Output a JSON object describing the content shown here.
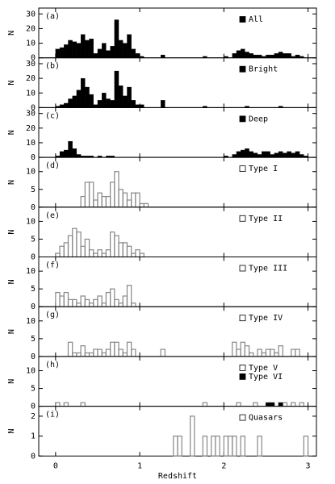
{
  "chart_data": {
    "type": "histogram",
    "xlabel": "Redshift",
    "xlim": [
      -0.2,
      3.1
    ],
    "xticks": [
      0,
      1,
      2,
      3
    ],
    "bins": [
      0,
      0.05,
      0.1,
      0.15,
      0.2,
      0.25,
      0.3,
      0.35,
      0.4,
      0.45,
      0.5,
      0.55,
      0.6,
      0.65,
      0.7,
      0.75,
      0.8,
      0.85,
      0.9,
      0.95,
      1,
      1.05,
      1.1,
      1.15,
      1.2,
      1.25,
      1.3,
      1.35,
      1.4,
      1.45,
      1.5,
      1.55,
      1.6,
      1.65,
      1.7,
      1.75,
      1.8,
      1.85,
      1.9,
      1.95,
      2,
      2.05,
      2.1,
      2.15,
      2.2,
      2.25,
      2.3,
      2.35,
      2.4,
      2.45,
      2.5,
      2.55,
      2.6,
      2.65,
      2.7,
      2.75,
      2.8,
      2.85,
      2.9,
      2.95,
      3
    ],
    "panels": [
      {
        "label": "(a)",
        "ylabel": "N",
        "ylim": [
          0,
          34
        ],
        "yticks": [
          0,
          10,
          20,
          30
        ],
        "series": [
          {
            "name": "All",
            "filled": true,
            "color": "#000000",
            "values": [
              6,
              7,
              9,
              12,
              11,
              10,
              16,
              12,
              13,
              3,
              6,
              10,
              5,
              8,
              26,
              12,
              10,
              16,
              6,
              3,
              1,
              0,
              0,
              0,
              0,
              2,
              0,
              0,
              0,
              0,
              0,
              0,
              0,
              0,
              0,
              1,
              0,
              0,
              0,
              0,
              1,
              0,
              3,
              5,
              6,
              4,
              3,
              2,
              2,
              1,
              2,
              2,
              3,
              4,
              3,
              3,
              1,
              2,
              1,
              0
            ]
          }
        ]
      },
      {
        "label": "(b)",
        "ylabel": "N",
        "ylim": [
          0,
          34
        ],
        "yticks": [
          0,
          10,
          20,
          30
        ],
        "series": [
          {
            "name": "Bright",
            "filled": true,
            "color": "#000000",
            "values": [
              1,
              2,
              3,
              6,
              8,
              12,
              20,
              14,
              9,
              2,
              5,
              10,
              6,
              5,
              25,
              15,
              8,
              14,
              5,
              2,
              2,
              0,
              0,
              0,
              0,
              5,
              0,
              0,
              0,
              0,
              0,
              0,
              0,
              0,
              0,
              1,
              0,
              0,
              0,
              0,
              0,
              0,
              0,
              0,
              0,
              1,
              0,
              0,
              0,
              0,
              0,
              0,
              0,
              1,
              0,
              0,
              0,
              0,
              0,
              0
            ]
          }
        ]
      },
      {
        "label": "(c)",
        "ylabel": "N",
        "ylim": [
          0,
          34
        ],
        "yticks": [
          0,
          10,
          20,
          30
        ],
        "series": [
          {
            "name": "Deep",
            "filled": true,
            "color": "#000000",
            "values": [
              1,
              4,
              5,
              11,
              6,
              2,
              1,
              1,
              1,
              0,
              1,
              0,
              1,
              1,
              0,
              0,
              0,
              0,
              0,
              0,
              0,
              0,
              0,
              0,
              0,
              0,
              0,
              0,
              0,
              0,
              0,
              0,
              0,
              0,
              0,
              0,
              0,
              0,
              0,
              0,
              1,
              0,
              2,
              4,
              5,
              6,
              4,
              3,
              2,
              4,
              4,
              2,
              3,
              4,
              3,
              4,
              3,
              4,
              2,
              1
            ]
          }
        ]
      },
      {
        "label": "(d)",
        "ylabel": "N",
        "ylim": [
          0,
          14
        ],
        "yticks": [
          0,
          5,
          10
        ],
        "series": [
          {
            "name": "Type I",
            "filled": false,
            "color": "#888888",
            "values": [
              0,
              0,
              0,
              0,
              0,
              0,
              3,
              7,
              7,
              2,
              4,
              3,
              3,
              7,
              10,
              5,
              4,
              2,
              4,
              4,
              1,
              1,
              0,
              0,
              0,
              0,
              0,
              0,
              0,
              0,
              0,
              0,
              0,
              0,
              0,
              0,
              0,
              0,
              0,
              0,
              0,
              0,
              0,
              0,
              0,
              0,
              0,
              0,
              0,
              0,
              0,
              0,
              0,
              0,
              0,
              0,
              0,
              0,
              0,
              0
            ]
          }
        ]
      },
      {
        "label": "(e)",
        "ylabel": "N",
        "ylim": [
          0,
          14
        ],
        "yticks": [
          0,
          5,
          10
        ],
        "series": [
          {
            "name": "Type II",
            "filled": false,
            "color": "#888888",
            "values": [
              1,
              3,
              4,
              6,
              8,
              7,
              3,
              5,
              2,
              1,
              2,
              1,
              2,
              7,
              6,
              4,
              4,
              3,
              1,
              2,
              1,
              0,
              0,
              0,
              0,
              0,
              0,
              0,
              0,
              0,
              0,
              0,
              0,
              0,
              0,
              0,
              0,
              0,
              0,
              0,
              0,
              0,
              0,
              0,
              0,
              0,
              0,
              0,
              0,
              0,
              0,
              0,
              0,
              0,
              0,
              0,
              0,
              0,
              0,
              0
            ]
          }
        ]
      },
      {
        "label": "(f)",
        "ylabel": "N",
        "ylim": [
          0,
          14
        ],
        "yticks": [
          0,
          5,
          10
        ],
        "series": [
          {
            "name": "Type III",
            "filled": false,
            "color": "#888888",
            "values": [
              4,
              3,
              4,
              2,
              2,
              1,
              3,
              2,
              1,
              2,
              3,
              1,
              4,
              5,
              2,
              1,
              3,
              6,
              1,
              0,
              0,
              0,
              0,
              0,
              0,
              0,
              0,
              0,
              0,
              0,
              0,
              0,
              0,
              0,
              0,
              0,
              0,
              0,
              0,
              0,
              0,
              0,
              0,
              0,
              0,
              0,
              0,
              0,
              0,
              0,
              0,
              0,
              0,
              0,
              0,
              0,
              0,
              0,
              0,
              0
            ]
          }
        ]
      },
      {
        "label": "(g)",
        "ylabel": "N",
        "ylim": [
          0,
          14
        ],
        "yticks": [
          0,
          5,
          10
        ],
        "series": [
          {
            "name": "Type IV",
            "filled": false,
            "color": "#888888",
            "values": [
              0,
              0,
              0,
              4,
              1,
              1,
              3,
              1,
              1,
              2,
              2,
              1,
              2,
              4,
              4,
              2,
              1,
              4,
              2,
              0,
              0,
              0,
              0,
              0,
              0,
              2,
              0,
              0,
              0,
              0,
              0,
              0,
              0,
              0,
              0,
              0,
              0,
              0,
              0,
              0,
              0,
              0,
              4,
              2,
              4,
              3,
              1,
              0,
              2,
              1,
              2,
              2,
              1,
              3,
              0,
              0,
              2,
              2,
              0,
              0
            ]
          }
        ]
      },
      {
        "label": "(h)",
        "ylabel": "N",
        "ylim": [
          0,
          14
        ],
        "yticks": [
          0,
          5,
          10
        ],
        "series": [
          {
            "name": "Type V",
            "filled": false,
            "color": "#888888",
            "values": [
              1,
              0,
              1,
              0,
              0,
              0,
              1,
              0,
              0,
              0,
              0,
              0,
              0,
              0,
              0,
              0,
              0,
              0,
              0,
              0,
              0,
              0,
              0,
              0,
              0,
              0,
              0,
              0,
              0,
              0,
              0,
              0,
              0,
              0,
              0,
              1,
              0,
              0,
              0,
              0,
              0,
              0,
              0,
              1,
              0,
              0,
              0,
              1,
              0,
              0,
              1,
              1,
              0,
              1,
              1,
              0,
              1,
              0,
              1,
              0
            ]
          },
          {
            "name": "Type VI",
            "filled": true,
            "color": "#000000",
            "values": [
              0,
              0,
              0,
              0,
              0,
              0,
              0,
              0,
              0,
              0,
              0,
              0,
              0,
              0,
              0,
              0,
              0,
              0,
              0,
              0,
              0,
              0,
              0,
              0,
              0,
              0,
              0,
              0,
              0,
              0,
              0,
              0,
              0,
              0,
              0,
              0,
              0,
              0,
              0,
              0,
              0,
              0,
              0,
              0,
              0,
              0,
              0,
              0,
              0,
              0,
              1,
              1,
              0,
              1,
              0,
              0,
              0,
              0,
              0,
              0
            ]
          }
        ]
      },
      {
        "label": "(i)",
        "ylabel": "N",
        "ylim": [
          0,
          2.5
        ],
        "yticks": [
          0,
          1,
          2
        ],
        "series": [
          {
            "name": "Quasars",
            "filled": false,
            "color": "#888888",
            "values": [
              0,
              0,
              0,
              0,
              0,
              0,
              0,
              0,
              0,
              0,
              0,
              0,
              0,
              0,
              0,
              0,
              0,
              0,
              0,
              0,
              0,
              0,
              0,
              0,
              0,
              0,
              0,
              0,
              1,
              1,
              0,
              0,
              2,
              0,
              0,
              1,
              0,
              1,
              1,
              0,
              1,
              1,
              1,
              0,
              1,
              0,
              0,
              0,
              1,
              0,
              0,
              0,
              0,
              0,
              0,
              0,
              0,
              0,
              0,
              1
            ]
          }
        ]
      }
    ]
  }
}
